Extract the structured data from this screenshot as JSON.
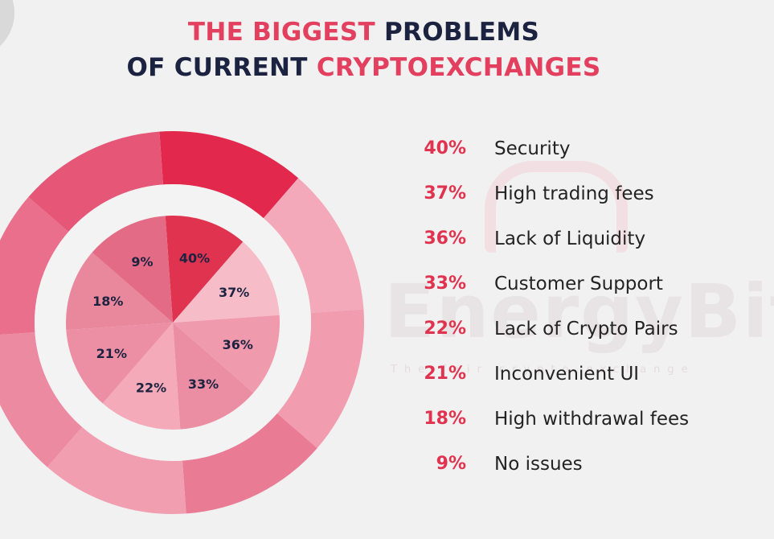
{
  "title": {
    "line1_part1": "THE BIGGEST",
    "line1_part2": "PROBLEMS",
    "line2_part1": "OF CURRENT",
    "line2_part2": "CRYPTOEXCHANGES"
  },
  "watermark": {
    "text": "EnergyBit",
    "tagline": "The fair crypto exchange"
  },
  "colors": {
    "accent": "#e0334f",
    "title_dark": "#1c2340",
    "inner_slices": [
      "#e0334f",
      "#f6bcc8",
      "#f09aad",
      "#ec8ea3",
      "#f4aab9",
      "#ed8fa4",
      "#e9889c",
      "#e36b85"
    ],
    "outer_slices": [
      "#e2294d",
      "#f3a9b9",
      "#f29cb0",
      "#ea7b95",
      "#f19eb1",
      "#ec8aa1",
      "#ea6f8c",
      "#e55677"
    ]
  },
  "chart_data": {
    "type": "pie",
    "title": "THE BIGGEST PROBLEMS OF CURRENT CRYPTOEXCHANGES",
    "categories": [
      "Security",
      "High trading fees",
      "Lack of Liquidity",
      "Customer Support",
      "Lack of Crypto Pairs",
      "Inconvenient UI",
      "High withdrawal fees",
      "No issues"
    ],
    "values": [
      40,
      37,
      36,
      33,
      22,
      21,
      18,
      9
    ],
    "value_labels": [
      "40%",
      "37%",
      "36%",
      "33%",
      "22%",
      "21%",
      "18%",
      "9%"
    ],
    "legend_position": "right"
  }
}
